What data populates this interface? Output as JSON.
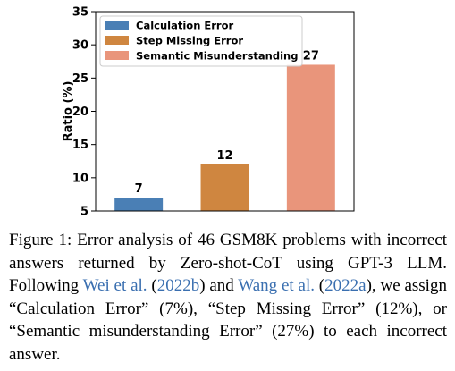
{
  "chart_data": {
    "type": "bar",
    "categories": [
      "Calculation Error",
      "Step Missing Error",
      "Semantic Misunderstanding"
    ],
    "values": [
      7,
      12,
      27
    ],
    "data_labels": [
      "7",
      "12",
      "27"
    ],
    "colors": [
      "#4a7fb5",
      "#cf8640",
      "#e9957b"
    ],
    "title": "",
    "xlabel": "",
    "ylabel": "Ratio (%)",
    "ylim": [
      5,
      35
    ],
    "yticks": [
      5,
      10,
      15,
      20,
      25,
      30,
      35
    ],
    "ytick_labels": [
      "5",
      "10",
      "15",
      "20",
      "25",
      "30",
      "35"
    ],
    "grid": false,
    "legend": {
      "placement": "top-left",
      "entries": [
        "Calculation Error",
        "Step Missing Error",
        "Semantic Misunderstanding"
      ]
    }
  },
  "caption": {
    "label": "Figure 1:",
    "text_1": "Error analysis of 46 GSM8K problems with incorrect answers returned by Zero-shot-CoT using GPT-3 LLM. Following",
    "ref_1_name": "Wei et al.",
    "ref_1_year": "2022b",
    "text_2": "and",
    "ref_2_name": "Wang et al.",
    "ref_2_year": "2022a",
    "text_3": ", we assign “Calculation Error” (7%), “Step Missing Error” (12%), or “Semantic misunderstanding Error” (27%) to each incorrect answer."
  }
}
